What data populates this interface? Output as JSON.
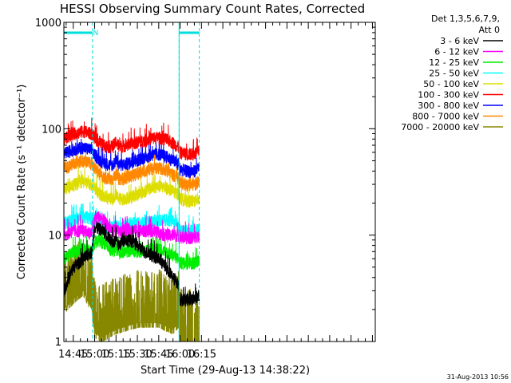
{
  "chart_data": {
    "type": "line",
    "title": "HESSI Observing Summary Count Rates, Corrected",
    "xlabel": "Start Time (29-Aug-13 14:38:22)",
    "ylabel": "Corrected Count Rate (s⁻¹ detector⁻¹)",
    "y_scale": "log",
    "ylim": [
      1,
      1000
    ],
    "xlim_minutes_since_14_00": [
      38.4,
      257
    ],
    "ytick_labels": [
      "1",
      "10",
      "100",
      "1000"
    ],
    "ytick_values": [
      1,
      10,
      100,
      1000
    ],
    "xtick_labels": [
      "14:45",
      "15:00",
      "15:15",
      "15:30",
      "15:45",
      "16:00",
      "16:15"
    ],
    "xtick_values_minutes_since_14_00": [
      45,
      60,
      75,
      90,
      105,
      120,
      135
    ],
    "legend_header": [
      "Det 1,3,5,6,7,9,",
      "Att 0"
    ],
    "legend_position": "right",
    "footer_date": "31-Aug-2013 10:56",
    "annotations": [
      {
        "text": "N",
        "x_minutes": 60,
        "color": "#00dddd"
      }
    ],
    "coverage_bars": [
      {
        "x_start": 38.4,
        "x_end": 58.5,
        "color": "#00dddd"
      },
      {
        "x_start": 119.3,
        "x_end": 133.5,
        "color": "#00dddd"
      }
    ],
    "dashed_markers": [
      58.5,
      119.3,
      133.5
    ],
    "series": [
      {
        "name": "3 - 6 keV",
        "color": "#000000",
        "x": [
          38.4,
          45,
          52,
          58,
          60,
          63,
          66,
          70,
          73,
          75,
          77,
          80,
          85,
          90,
          95,
          100,
          105,
          110,
          115,
          119,
          120,
          125,
          130,
          133.5
        ],
        "y": [
          3.0,
          5.0,
          6.0,
          7.0,
          12.0,
          11.5,
          11.0,
          9.5,
          8.5,
          9.0,
          8.0,
          9.0,
          9.0,
          8.0,
          7.0,
          6.5,
          6.0,
          5.0,
          4.0,
          3.5,
          2.5,
          2.5,
          2.5,
          2.8
        ]
      },
      {
        "name": "6 - 12 keV",
        "color": "#ff00ff",
        "x": [
          38.4,
          45,
          52,
          58,
          60,
          63,
          66,
          70,
          73,
          75,
          77,
          80,
          85,
          90,
          95,
          100,
          105,
          110,
          115,
          119,
          120,
          125,
          130,
          133.5
        ],
        "y": [
          10.0,
          11.0,
          11.0,
          10.5,
          14.0,
          15.0,
          14.0,
          12.0,
          11.0,
          12.0,
          10.5,
          11.0,
          11.5,
          11.0,
          11.0,
          11.0,
          10.5,
          10.0,
          10.0,
          10.0,
          9.5,
          9.5,
          9.5,
          10.0
        ]
      },
      {
        "name": "12 - 25 keV",
        "color": "#00ee00",
        "x": [
          38.4,
          45,
          52,
          58,
          60,
          63,
          66,
          70,
          73,
          75,
          77,
          80,
          85,
          90,
          95,
          100,
          105,
          110,
          115,
          119,
          120,
          125,
          130,
          133.5
        ],
        "y": [
          6.0,
          7.0,
          7.5,
          7.0,
          8.5,
          9.0,
          8.5,
          7.5,
          7.0,
          7.5,
          6.8,
          7.0,
          7.2,
          7.0,
          7.0,
          7.5,
          7.5,
          7.0,
          6.5,
          6.0,
          5.5,
          5.5,
          5.5,
          6.0
        ]
      },
      {
        "name": "25 - 50 keV",
        "color": "#00ffff",
        "x": [
          38.4,
          45,
          52,
          58,
          60,
          63,
          66,
          70,
          73,
          75,
          77,
          80,
          85,
          90,
          95,
          100,
          105,
          110,
          115,
          119,
          120,
          125,
          130,
          133.5
        ],
        "y": [
          13.0,
          14.0,
          15.0,
          14.5,
          13.0,
          12.5,
          12.0,
          12.0,
          12.0,
          12.5,
          12.0,
          12.5,
          13.0,
          13.0,
          13.0,
          13.5,
          14.0,
          14.0,
          13.5,
          12.5,
          11.0,
          11.0,
          11.0,
          11.5
        ]
      },
      {
        "name": "50 - 100 keV",
        "color": "#dddd00",
        "x": [
          38.4,
          45,
          52,
          58,
          60,
          63,
          66,
          70,
          73,
          75,
          77,
          80,
          85,
          90,
          95,
          100,
          105,
          110,
          115,
          119,
          120,
          125,
          130,
          133.5
        ],
        "y": [
          27.0,
          30.0,
          32.0,
          30.0,
          28.0,
          25.0,
          23.0,
          22.0,
          22.0,
          24.0,
          22.0,
          22.0,
          23.0,
          24.0,
          26.0,
          28.0,
          29.0,
          28.0,
          26.0,
          24.0,
          22.0,
          21.0,
          21.0,
          22.0
        ]
      },
      {
        "name": "100 - 300 keV",
        "color": "#ff0000",
        "x": [
          38.4,
          45,
          52,
          58,
          60,
          63,
          66,
          70,
          73,
          75,
          77,
          80,
          85,
          90,
          95,
          100,
          105,
          110,
          115,
          119,
          120,
          125,
          130,
          133.5
        ],
        "y": [
          80.0,
          90.0,
          95.0,
          90.0,
          82.0,
          75.0,
          70.0,
          68.0,
          68.0,
          76.0,
          68.0,
          69.0,
          72.0,
          75.0,
          78.0,
          82.0,
          83.0,
          80.0,
          74.0,
          67.0,
          60.0,
          58.0,
          58.0,
          62.0
        ]
      },
      {
        "name": "300 - 800 keV",
        "color": "#0000ff",
        "x": [
          38.4,
          45,
          52,
          58,
          60,
          63,
          66,
          70,
          73,
          75,
          77,
          80,
          85,
          90,
          95,
          100,
          105,
          110,
          115,
          119,
          120,
          125,
          130,
          133.5
        ],
        "y": [
          58.0,
          64.0,
          67.0,
          63.0,
          57.0,
          52.0,
          48.0,
          46.0,
          46.0,
          52.0,
          46.0,
          46.0,
          48.0,
          51.0,
          54.0,
          57.0,
          58.0,
          55.0,
          51.0,
          46.0,
          42.0,
          40.0,
          40.0,
          43.0
        ]
      },
      {
        "name": "800 - 7000 keV",
        "color": "#ff8800",
        "x": [
          38.4,
          45,
          52,
          58,
          60,
          63,
          66,
          70,
          73,
          75,
          77,
          80,
          85,
          90,
          95,
          100,
          105,
          110,
          115,
          119,
          120,
          125,
          130,
          133.5
        ],
        "y": [
          42.0,
          47.0,
          50.0,
          47.0,
          43.0,
          38.0,
          35.0,
          34.0,
          34.0,
          38.0,
          34.0,
          34.0,
          36.0,
          38.0,
          40.0,
          42.0,
          43.0,
          41.0,
          37.0,
          34.0,
          31.0,
          30.0,
          30.0,
          32.0
        ]
      },
      {
        "name": "7000 - 20000 keV",
        "color": "#888800",
        "x": [
          38.4,
          45,
          52,
          58,
          60,
          65,
          75,
          90,
          105,
          115,
          119,
          120,
          125,
          130,
          133.5
        ],
        "y": [
          2.0,
          2.5,
          3.0,
          2.0,
          1.2,
          1.1,
          1.3,
          1.5,
          1.5,
          1.3,
          1.5,
          1.0,
          1.0,
          1.0,
          1.0
        ]
      }
    ]
  }
}
